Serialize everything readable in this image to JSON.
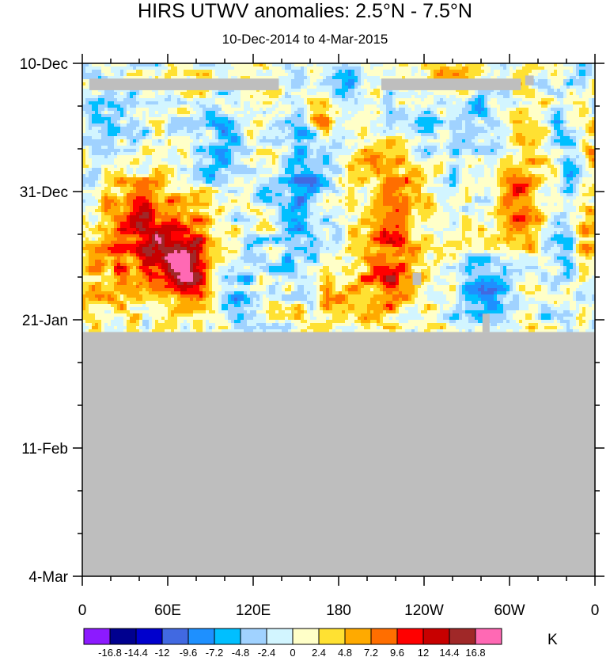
{
  "chart_data": {
    "type": "heatmap",
    "title": "HIRS UTWV anomalies: 2.5°N - 7.5°N",
    "subtitle": "10-Dec-2014 to 4-Mar-2015",
    "units": "K",
    "x_ticks": [
      {
        "lon": 0,
        "label": "0"
      },
      {
        "lon": 60,
        "label": "60E"
      },
      {
        "lon": 120,
        "label": "120E"
      },
      {
        "lon": 180,
        "label": "180"
      },
      {
        "lon": 240,
        "label": "120W"
      },
      {
        "lon": 300,
        "label": "60W"
      },
      {
        "lon": 360,
        "label": "0"
      }
    ],
    "y_ticks": [
      {
        "day": 0,
        "label": "10-Dec"
      },
      {
        "day": 21,
        "label": "31-Dec"
      },
      {
        "day": 42,
        "label": "21-Jan"
      },
      {
        "day": 63,
        "label": "11-Feb"
      },
      {
        "day": 84,
        "label": "4-Mar"
      }
    ],
    "xlim": [
      0,
      360
    ],
    "ylim_days": [
      0,
      84
    ],
    "data_end_day": 44,
    "contour_levels": [
      -16.8,
      -14.4,
      -12,
      -9.6,
      -7.2,
      -4.8,
      -2.4,
      0,
      2.4,
      4.8,
      7.2,
      9.6,
      12,
      14.4,
      16.8
    ],
    "level_labels": [
      "-16.8",
      "-14.4",
      "-12",
      "-9.6",
      "-7.2",
      "-4.8",
      "-2.4",
      "0",
      "2.4",
      "4.8",
      "7.2",
      "9.6",
      "12",
      "14.4",
      "16.8"
    ],
    "colors": [
      "#8c1aff",
      "#00008f",
      "#0000cd",
      "#4169e1",
      "#1e90ff",
      "#00bfff",
      "#a0d2ff",
      "#d2f5ff",
      "#ffffc8",
      "#ffe132",
      "#ffaa00",
      "#ff6e00",
      "#ff0000",
      "#c80000",
      "#a02828",
      "#ff69b4"
    ],
    "missing_color": "#bebebe",
    "missing_blocks": [
      {
        "lon": [
          5,
          138
        ],
        "day": [
          2.5,
          4.4
        ]
      },
      {
        "lon": [
          210,
          308
        ],
        "day": [
          2.5,
          4.4
        ]
      },
      {
        "lon": [
          311,
          317
        ],
        "day": [
          2.0,
          3.6
        ]
      },
      {
        "lon": [
          232,
          238
        ],
        "day": [
          34.3,
          36.3
        ]
      },
      {
        "lon": [
          281,
          286
        ],
        "day": [
          41.0,
          44
        ]
      }
    ],
    "features": [
      {
        "lon": 60,
        "day": 31,
        "amp": 12.5,
        "sx": 22,
        "sy": 6.5
      },
      {
        "lon": 78,
        "day": 33,
        "amp": 8,
        "sx": 10,
        "sy": 3.5
      },
      {
        "lon": 40,
        "day": 25,
        "amp": 6,
        "sx": 15,
        "sy": 5
      },
      {
        "lon": 12,
        "day": 34,
        "amp": 5,
        "sx": 12,
        "sy": 6
      },
      {
        "lon": 218,
        "day": 35,
        "amp": 11,
        "sx": 15,
        "sy": 4
      },
      {
        "lon": 212,
        "day": 27,
        "amp": 8,
        "sx": 14,
        "sy": 3.2
      },
      {
        "lon": 212,
        "day": 17,
        "amp": 7,
        "sx": 14,
        "sy": 4
      },
      {
        "lon": 238,
        "day": 20,
        "amp": 5,
        "sx": 10,
        "sy": 4
      },
      {
        "lon": 168,
        "day": 9,
        "amp": 9,
        "sx": 6,
        "sy": 2
      },
      {
        "lon": 305,
        "day": 24,
        "amp": 8,
        "sx": 10,
        "sy": 6
      },
      {
        "lon": 325,
        "day": 17,
        "amp": 5,
        "sx": 10,
        "sy": 4
      },
      {
        "lon": 355,
        "day": 28,
        "amp": 7,
        "sx": 8,
        "sy": 4
      },
      {
        "lon": 355,
        "day": 15,
        "amp": 5,
        "sx": 8,
        "sy": 4
      },
      {
        "lon": 110,
        "day": 5,
        "amp": 5,
        "sx": 20,
        "sy": 4
      },
      {
        "lon": 262,
        "day": 2,
        "amp": 5,
        "sx": 30,
        "sy": 2.5
      },
      {
        "lon": 262,
        "day": 10,
        "amp": 4,
        "sx": 15,
        "sy": 3
      },
      {
        "lon": 180,
        "day": 39,
        "amp": 5,
        "sx": 15,
        "sy": 3
      },
      {
        "lon": 140,
        "day": 37,
        "amp": 3,
        "sx": 12,
        "sy": 3
      },
      {
        "lon": 100,
        "day": 12,
        "amp": -7,
        "sx": 12,
        "sy": 8
      },
      {
        "lon": 150,
        "day": 26,
        "amp": -8,
        "sx": 10,
        "sy": 7
      },
      {
        "lon": 160,
        "day": 15,
        "amp": -5,
        "sx": 12,
        "sy": 5
      },
      {
        "lon": 110,
        "day": 38,
        "amp": -6,
        "sx": 15,
        "sy": 4
      },
      {
        "lon": 285,
        "day": 38,
        "amp": -9,
        "sx": 12,
        "sy": 4
      },
      {
        "lon": 280,
        "day": 8,
        "amp": -6,
        "sx": 10,
        "sy": 6
      },
      {
        "lon": 340,
        "day": 20,
        "amp": -6,
        "sx": 10,
        "sy": 10
      },
      {
        "lon": 245,
        "day": 12,
        "amp": -5,
        "sx": 15,
        "sy": 5
      },
      {
        "lon": 20,
        "day": 8,
        "amp": -3,
        "sx": 15,
        "sy": 5
      },
      {
        "lon": 190,
        "day": 3,
        "amp": -4,
        "sx": 15,
        "sy": 3
      }
    ]
  }
}
